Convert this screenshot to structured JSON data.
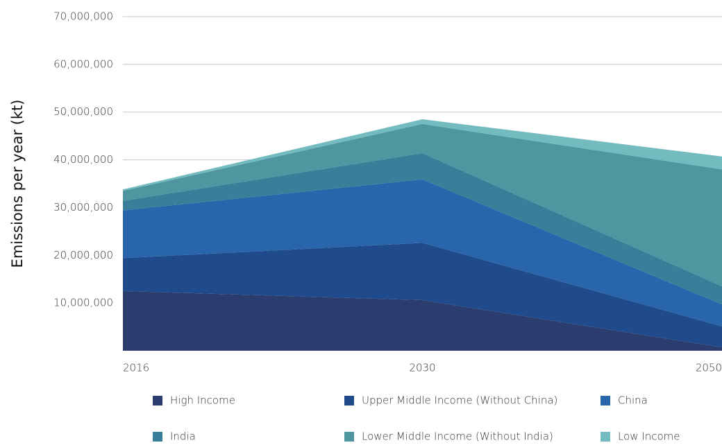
{
  "chart_data": {
    "type": "stacked_area",
    "y_label": "Emissions per year (kt)",
    "categories": [
      "2016",
      "2030",
      "2050"
    ],
    "series": [
      {
        "name": "High Income",
        "color": "#2b3d6e",
        "values": [
          12500000,
          10600000,
          700000
        ]
      },
      {
        "name": "Upper Middle Income (Without China)",
        "color": "#1f4a8b",
        "values": [
          6900000,
          12000000,
          4400000
        ]
      },
      {
        "name": "China",
        "color": "#2865aa",
        "values": [
          10000000,
          13300000,
          4600000
        ]
      },
      {
        "name": "India",
        "color": "#3a7f99",
        "values": [
          2000000,
          5500000,
          3800000
        ]
      },
      {
        "name": "Lower Middle Income (Without India)",
        "color": "#4f96a0",
        "values": [
          2100000,
          6100000,
          24500000
        ]
      },
      {
        "name": "Low Income",
        "color": "#74bbc0",
        "values": [
          300000,
          1000000,
          2700000
        ]
      }
    ],
    "ylim": [
      0,
      70000000
    ],
    "yticks": [
      {
        "value": 10000000,
        "label": "10,000,000"
      },
      {
        "value": 20000000,
        "label": "20,000,000"
      },
      {
        "value": 30000000,
        "label": "30,000,000"
      },
      {
        "value": 40000000,
        "label": "40,000,000"
      },
      {
        "value": 50000000,
        "label": "50,000,000"
      },
      {
        "value": 60000000,
        "label": "60,000,000"
      },
      {
        "value": 70000000,
        "label": "70,000,000"
      }
    ],
    "grid": true
  }
}
